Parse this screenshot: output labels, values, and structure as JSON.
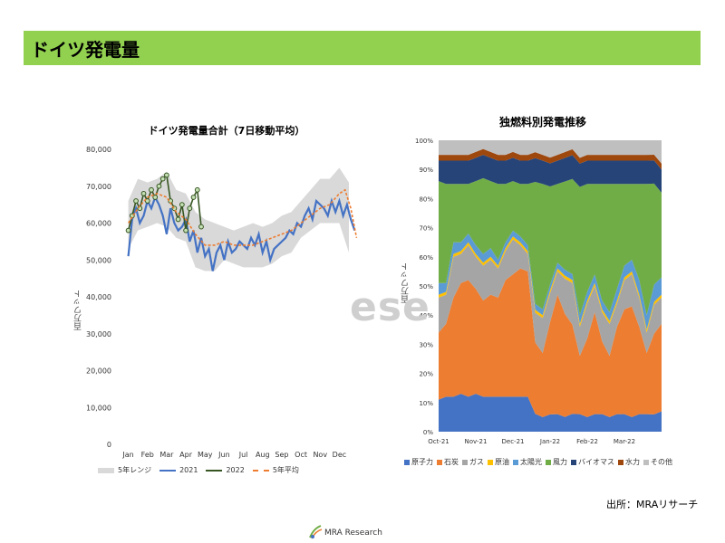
{
  "header": {
    "title": "ドイツ発電量"
  },
  "source_note": "出所：MRAリサーチ",
  "watermark": "ese",
  "logo": {
    "text": "MRA Research",
    "name": "mra-logo"
  },
  "colors": {
    "banner": "#92d050"
  },
  "chart_data": [
    {
      "type": "line",
      "title": "ドイツ発電量合計（7日移動平均）",
      "ylabel": "百万ワット",
      "xlabel": "",
      "ylim": [
        0,
        80000
      ],
      "yticks": [
        "0",
        "10,000",
        "20,000",
        "30,000",
        "40,000",
        "50,000",
        "60,000",
        "70,000",
        "80,000"
      ],
      "categories": [
        "Jan",
        "Feb",
        "Mar",
        "Apr",
        "May",
        "Jun",
        "Jul",
        "Aug",
        "Sep",
        "Oct",
        "Nov",
        "Dec"
      ],
      "legend_position": "bottom",
      "range_band": {
        "name": "5年レンジ",
        "color": "#d9d9d9",
        "x": [
          0,
          0.5,
          1,
          1.5,
          2,
          2.5,
          3,
          3.5,
          4,
          4.5,
          5,
          5.5,
          6,
          6.5,
          7,
          7.5,
          8,
          8.5,
          9,
          9.5,
          10,
          10.5,
          11,
          11.5
        ],
        "upper": [
          66000,
          72000,
          71000,
          72000,
          74000,
          69000,
          68000,
          63000,
          61000,
          60000,
          59000,
          58000,
          59000,
          60000,
          59000,
          60000,
          62000,
          63000,
          66000,
          69000,
          72000,
          72000,
          75000,
          71000
        ],
        "lower": [
          53000,
          58000,
          59000,
          60000,
          59000,
          56000,
          55000,
          48000,
          47000,
          47000,
          50000,
          49000,
          48000,
          48000,
          48000,
          49000,
          51000,
          52000,
          56000,
          58000,
          60000,
          60000,
          60000,
          52000
        ]
      },
      "series": [
        {
          "name": "2021",
          "color": "#4472c4",
          "x": [
            0,
            0.2,
            0.4,
            0.6,
            0.8,
            1,
            1.2,
            1.4,
            1.6,
            1.8,
            2,
            2.2,
            2.4,
            2.6,
            2.8,
            3,
            3.2,
            3.4,
            3.6,
            3.8,
            4,
            4.2,
            4.4,
            4.6,
            4.8,
            5,
            5.2,
            5.4,
            5.6,
            5.8,
            6,
            6.2,
            6.4,
            6.6,
            6.8,
            7,
            7.2,
            7.4,
            7.6,
            7.8,
            8,
            8.2,
            8.4,
            8.6,
            8.8,
            9,
            9.2,
            9.4,
            9.6,
            9.8,
            10,
            10.2,
            10.4,
            10.6,
            10.8,
            11,
            11.2,
            11.4,
            11.6,
            11.8
          ],
          "values": [
            51000,
            61000,
            64000,
            60000,
            62000,
            66000,
            64000,
            67000,
            65000,
            62000,
            57000,
            64000,
            60000,
            58000,
            59000,
            61000,
            55000,
            58000,
            52000,
            56000,
            51000,
            53000,
            47000,
            52000,
            54000,
            50000,
            55000,
            52000,
            53000,
            55000,
            54000,
            53000,
            56000,
            54000,
            57000,
            52000,
            55000,
            50000,
            53000,
            54000,
            55000,
            56000,
            58000,
            57000,
            60000,
            59000,
            62000,
            64000,
            61000,
            66000,
            65000,
            64000,
            62000,
            66000,
            63000,
            66000,
            62000,
            65000,
            61000,
            58000
          ]
        },
        {
          "name": "2022",
          "color": "#375623",
          "marker_fill": "#c5e0b4",
          "x": [
            0,
            0.2,
            0.4,
            0.6,
            0.8,
            1,
            1.2,
            1.4,
            1.6,
            1.8,
            2,
            2.2,
            2.4,
            2.6,
            2.8,
            3,
            3.2,
            3.4,
            3.6,
            3.8
          ],
          "values": [
            58000,
            62000,
            66000,
            64000,
            68000,
            66000,
            69000,
            67000,
            70000,
            72000,
            73000,
            66000,
            64000,
            61000,
            65000,
            58000,
            64000,
            67000,
            69000,
            59000
          ]
        },
        {
          "name": "5年平均",
          "color": "#ed7d31",
          "dash": true,
          "x": [
            0,
            0.5,
            1,
            1.5,
            2,
            2.5,
            3,
            3.5,
            4,
            4.5,
            5,
            5.5,
            6,
            6.5,
            7,
            7.5,
            8,
            8.5,
            9,
            9.5,
            10,
            10.5,
            11,
            11.3,
            11.6,
            11.9
          ],
          "values": [
            60000,
            64000,
            67000,
            68000,
            67000,
            63000,
            61000,
            57000,
            54000,
            54000,
            55000,
            54000,
            54000,
            54000,
            55000,
            56000,
            57000,
            58000,
            60000,
            62000,
            64000,
            65000,
            68000,
            69000,
            64000,
            56000
          ]
        }
      ]
    },
    {
      "type": "area",
      "stacked": "percent",
      "title": "独燃料別発電推移",
      "ylabel": "百万ワット",
      "ylim": [
        0,
        100
      ],
      "yticks": [
        "0%",
        "10%",
        "20%",
        "30%",
        "40%",
        "50%",
        "60%",
        "70%",
        "80%",
        "90%",
        "100%"
      ],
      "categories": [
        "Oct-21",
        "Nov-21",
        "Dec-21",
        "Jan-22",
        "Feb-22",
        "Mar-22"
      ],
      "legend_position": "bottom",
      "x": [
        0,
        0.2,
        0.4,
        0.6,
        0.8,
        1,
        1.2,
        1.4,
        1.6,
        1.8,
        2,
        2.2,
        2.4,
        2.6,
        2.8,
        3,
        3.2,
        3.4,
        3.6,
        3.8,
        4,
        4.2,
        4.4,
        4.6,
        4.8,
        5,
        5.2,
        5.4,
        5.6,
        5.8,
        6
      ],
      "series": [
        {
          "name": "原子力",
          "color": "#4472c4",
          "values": [
            11,
            12,
            12,
            13,
            12,
            13,
            12,
            12,
            12,
            12,
            12,
            12,
            12,
            6,
            5,
            6,
            6,
            5,
            6,
            6,
            5,
            6,
            6,
            5,
            6,
            6,
            5,
            6,
            6,
            6,
            7
          ]
        },
        {
          "name": "石炭",
          "color": "#ed7d31",
          "values": [
            23,
            25,
            34,
            38,
            40,
            36,
            33,
            35,
            34,
            40,
            42,
            44,
            43,
            24,
            22,
            32,
            41,
            35,
            30,
            20,
            27,
            35,
            25,
            21,
            30,
            36,
            38,
            30,
            21,
            28,
            30
          ]
        },
        {
          "name": "ガス",
          "color": "#a5a5a5",
          "values": [
            12,
            10,
            14,
            10,
            12,
            11,
            12,
            12,
            10,
            10,
            12,
            8,
            6,
            10,
            12,
            10,
            8,
            12,
            14,
            10,
            12,
            9,
            10,
            11,
            8,
            10,
            11,
            10,
            7,
            10,
            9
          ]
        },
        {
          "name": "原油",
          "color": "#ffc000",
          "values": [
            1,
            1,
            1,
            1,
            1,
            1,
            1,
            1,
            1,
            1,
            1,
            1,
            1,
            1,
            1,
            1,
            1,
            1,
            1,
            1,
            1,
            1,
            1,
            1,
            1,
            1,
            1,
            1,
            1,
            1,
            1
          ]
        },
        {
          "name": "太陽光",
          "color": "#5b9bd5",
          "values": [
            4,
            3,
            4,
            3,
            3,
            3,
            3,
            3,
            2,
            2,
            2,
            2,
            2,
            2,
            2,
            2,
            2,
            2,
            2,
            3,
            3,
            3,
            3,
            3,
            4,
            4,
            4,
            5,
            5,
            6,
            6
          ]
        },
        {
          "name": "風力",
          "color": "#70ad47",
          "values": [
            35,
            34,
            20,
            20,
            17,
            22,
            26,
            23,
            26,
            20,
            17,
            18,
            21,
            41,
            43,
            34,
            27,
            30,
            32,
            44,
            37,
            31,
            40,
            44,
            36,
            28,
            26,
            33,
            45,
            35,
            29
          ]
        },
        {
          "name": "バイオマス",
          "color": "#264478",
          "values": [
            7,
            8,
            8,
            8,
            8,
            8,
            8,
            8,
            8,
            8,
            8,
            8,
            8,
            8,
            8,
            8,
            8,
            8,
            8,
            8,
            8,
            8,
            8,
            8,
            8,
            8,
            8,
            8,
            8,
            8,
            8
          ]
        },
        {
          "name": "水力",
          "color": "#9e480e",
          "values": [
            2,
            2,
            2,
            2,
            2,
            2,
            2,
            2,
            2,
            2,
            2,
            2,
            2,
            2,
            2,
            2,
            2,
            2,
            2,
            2,
            2,
            2,
            2,
            2,
            2,
            2,
            2,
            2,
            2,
            2,
            2
          ]
        },
        {
          "name": "その他",
          "color": "#bfbfbf",
          "values": [
            5,
            5,
            5,
            5,
            5,
            4,
            3,
            4,
            5,
            5,
            4,
            5,
            5,
            4,
            5,
            6,
            5,
            4,
            3,
            6,
            5,
            5,
            5,
            5,
            5,
            5,
            5,
            5,
            5,
            5,
            8
          ]
        }
      ]
    }
  ]
}
